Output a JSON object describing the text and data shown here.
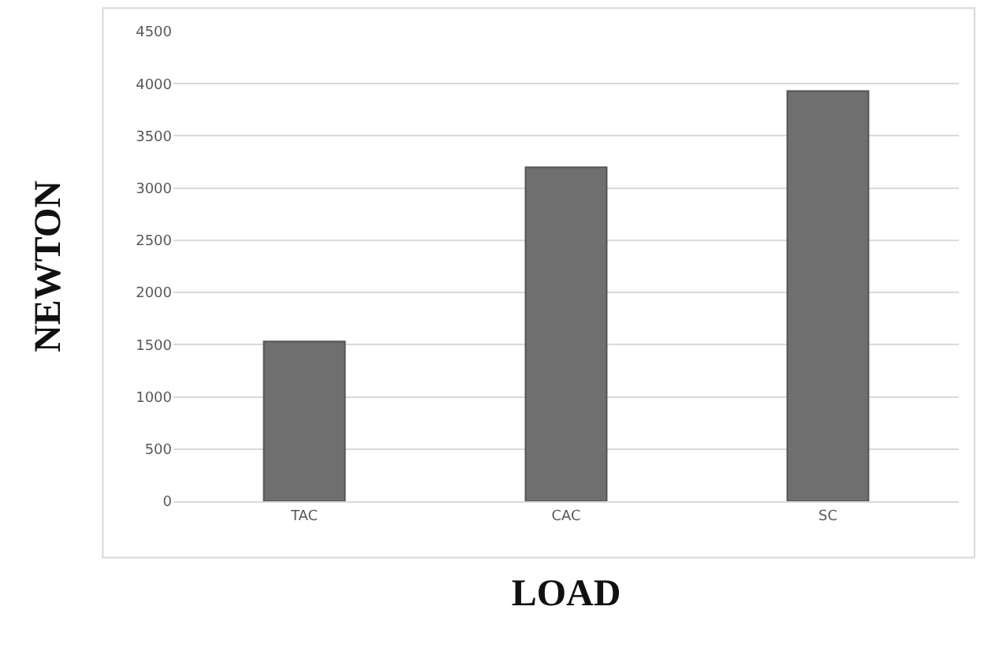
{
  "chart_data": {
    "type": "bar",
    "xlabel": "LOAD",
    "ylabel": "NEWTON",
    "categories": [
      "TAC",
      "CAC",
      "SC"
    ],
    "values": [
      1530,
      3200,
      3930
    ],
    "color": "#6f6f6f",
    "ylim": [
      0,
      4500
    ],
    "yticks": [
      0,
      500,
      1000,
      1500,
      2000,
      2500,
      3000,
      3500,
      4000,
      4500
    ],
    "grid": "y",
    "legend": false
  }
}
